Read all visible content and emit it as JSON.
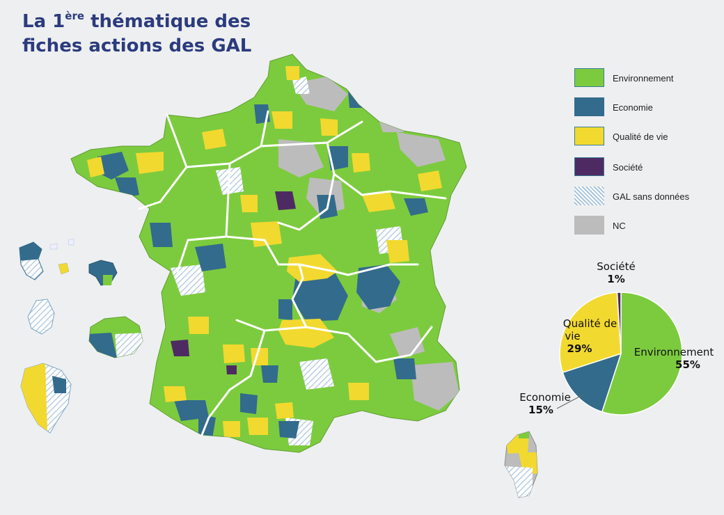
{
  "title": {
    "prefix": "La 1",
    "superscript": "ère",
    "line1_rest": " thématique des",
    "line2": "fiches actions des GAL"
  },
  "colors": {
    "environnement": "#7ccb3e",
    "economie": "#336b8c",
    "qualite": "#f2d92f",
    "societe": "#4d2b62",
    "sans_donnees_hatch": "#a9c4dc",
    "nc": "#bcbcbc",
    "title": "#2b3b7d",
    "background": "#eeeff1"
  },
  "legend": {
    "items": [
      {
        "key": "environnement",
        "label": "Environnement"
      },
      {
        "key": "economie",
        "label": "Economie"
      },
      {
        "key": "qualite",
        "label": "Qualité de vie"
      },
      {
        "key": "societe",
        "label": "Société"
      },
      {
        "key": "sans_donnees",
        "label": "GAL sans données"
      },
      {
        "key": "nc",
        "label": "NC"
      }
    ]
  },
  "chart_data": {
    "type": "pie",
    "slices": [
      {
        "name": "Environnement",
        "value": 55,
        "label": "55%",
        "color": "#7ccb3e"
      },
      {
        "name": "Economie",
        "value": 15,
        "label": "15%",
        "color": "#336b8c"
      },
      {
        "name": "Qualité de vie",
        "value": 29,
        "label": "29%",
        "color": "#f2d92f"
      },
      {
        "name": "Société",
        "value": 1,
        "label": "1%",
        "color": "#4d2b62"
      }
    ]
  },
  "pie_labels": {
    "societe_name": "Société",
    "societe_pct": "1%",
    "qualite_name_1": "Qualité de",
    "qualite_name_2": "vie",
    "qualite_pct": "29%",
    "env_name": "Environnement",
    "env_pct": "55%",
    "eco_name": "Economie",
    "eco_pct": "15%"
  }
}
